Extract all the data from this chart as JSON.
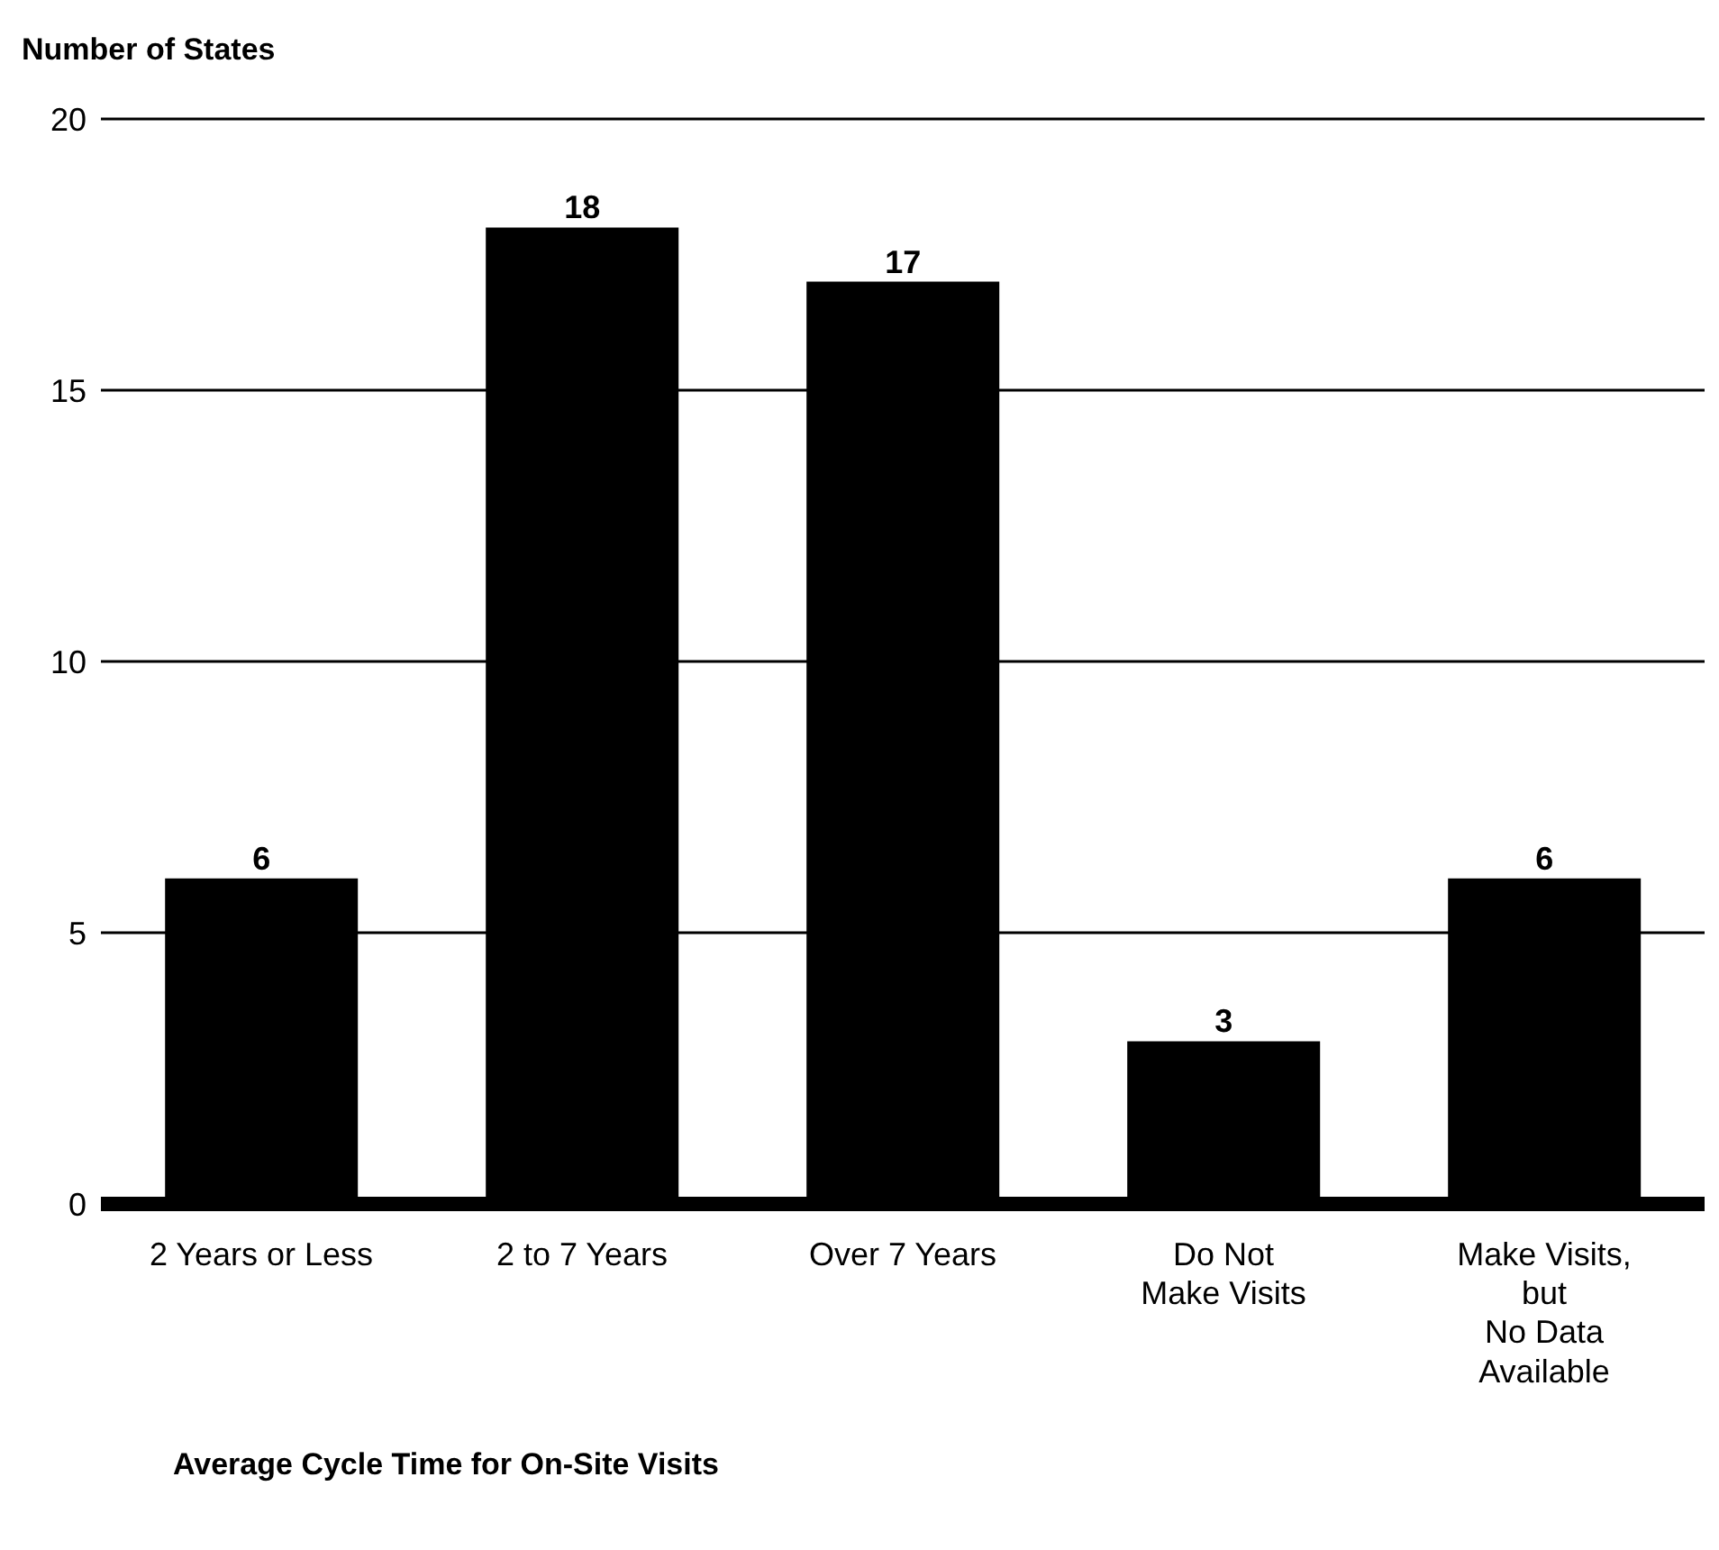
{
  "chart_data": {
    "type": "bar",
    "ylabel": "Number of States",
    "xlabel": "Average Cycle Time for On-Site Visits",
    "categories": [
      "2 Years or Less",
      "2 to 7 Years",
      "Over 7 Years",
      "Do Not\nMake Visits",
      "Make Visits,\nbut\nNo Data\nAvailable"
    ],
    "values": [
      6,
      18,
      17,
      3,
      6
    ],
    "color": "#000000",
    "ylim": [
      0,
      20
    ],
    "yticks": [
      0,
      5,
      10,
      15,
      20
    ],
    "grid": "y",
    "data_labels": true
  }
}
